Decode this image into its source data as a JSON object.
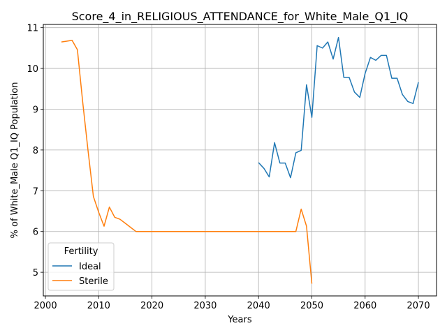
{
  "chart_data": {
    "type": "line",
    "title": "Score_4_in_RELIGIOUS_ATTENDANCE_for_White_Male_Q1_IQ",
    "xlabel": "Years",
    "ylabel": "% of White_Male Q1_IQ Population",
    "xlim": [
      1999.6,
      2073.4
    ],
    "ylim": [
      4.42,
      11.08
    ],
    "xticks": [
      2000,
      2010,
      2020,
      2030,
      2040,
      2050,
      2060,
      2070
    ],
    "yticks": [
      5,
      6,
      7,
      8,
      9,
      10,
      11
    ],
    "grid": true,
    "legend": {
      "title": "Fertility",
      "position": "lower-left"
    },
    "series": [
      {
        "name": "Ideal",
        "color": "#1f77b4",
        "x": [
          2040,
          2041,
          2042,
          2043,
          2044,
          2045,
          2046,
          2047,
          2048,
          2049,
          2050,
          2051,
          2052,
          2053,
          2054,
          2055,
          2056,
          2057,
          2058,
          2059,
          2060,
          2061,
          2062,
          2063,
          2064,
          2065,
          2066,
          2067,
          2068,
          2069,
          2070
        ],
        "y": [
          7.69,
          7.55,
          7.34,
          8.18,
          7.68,
          7.68,
          7.32,
          7.93,
          7.99,
          9.6,
          8.8,
          10.56,
          10.5,
          10.65,
          10.23,
          10.76,
          9.78,
          9.78,
          9.42,
          9.29,
          9.88,
          10.27,
          10.2,
          10.32,
          10.32,
          9.76,
          9.76,
          9.36,
          9.19,
          9.14,
          9.66
        ]
      },
      {
        "name": "Sterile",
        "color": "#ff7f0e",
        "x": [
          2003,
          2004,
          2005,
          2006,
          2007,
          2008,
          2009,
          2010,
          2011,
          2012,
          2013,
          2014,
          2015,
          2016,
          2017,
          2018,
          2020,
          2025,
          2030,
          2035,
          2040,
          2045,
          2047,
          2048,
          2049,
          2050
        ],
        "y": [
          10.65,
          10.67,
          10.69,
          10.46,
          9.17,
          7.98,
          6.86,
          6.47,
          6.13,
          6.6,
          6.35,
          6.3,
          6.2,
          6.1,
          6.0,
          6.0,
          6.0,
          6.0,
          6.0,
          6.0,
          6.0,
          6.0,
          6.0,
          6.55,
          6.13,
          4.72
        ]
      }
    ]
  }
}
